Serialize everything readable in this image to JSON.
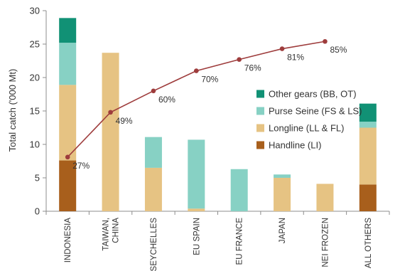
{
  "chart_data": {
    "type": "bar",
    "stacked": true,
    "ylabel": "Total catch ('000 Mt)",
    "ylim": [
      0,
      30
    ],
    "yticks": [
      0,
      5,
      10,
      15,
      20,
      25,
      30
    ],
    "grid": false,
    "legend_position": "right",
    "categories": [
      "INDONESIA",
      "TAIWAN, CHINA",
      "SEYCHELLES",
      "EU SPAIN",
      "EU FRANCE",
      "JAPAN",
      "NEI FROZEN",
      "ALL OTHERS"
    ],
    "series": [
      {
        "name": "Handline (LI)",
        "color": "#A85F1C",
        "values": [
          7.6,
          0,
          0,
          0,
          0,
          0,
          0,
          4.0
        ]
      },
      {
        "name": "Longline (LL & FL)",
        "color": "#E6C383",
        "values": [
          11.3,
          23.7,
          6.5,
          0.4,
          0,
          5.0,
          4.1,
          8.5
        ]
      },
      {
        "name": "Purse Seine (FS & LS)",
        "color": "#87D1C4",
        "values": [
          6.3,
          0,
          4.6,
          10.3,
          6.3,
          0.5,
          0,
          0.9
        ]
      },
      {
        "name": "Other gears (BB, OT)",
        "color": "#119175",
        "values": [
          3.7,
          0,
          0,
          0,
          0,
          0,
          0,
          2.7
        ]
      }
    ],
    "legend_order": [
      "Other gears (BB, OT)",
      "Purse Seine (FS & LS)",
      "Longline (LL & FL)",
      "Handline (LI)"
    ],
    "cumulative_line": {
      "color": "#9E3C3C",
      "values": [
        8.1,
        14.8,
        18.0,
        21.0,
        22.7,
        24.3,
        25.4
      ],
      "labels": [
        "27%",
        "49%",
        "60%",
        "70%",
        "76%",
        "81%",
        "85%"
      ]
    }
  }
}
